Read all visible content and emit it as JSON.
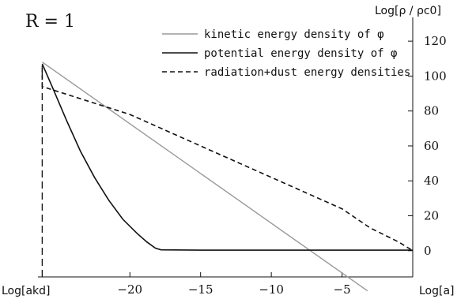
{
  "chart_data": {
    "type": "line",
    "parameter_label": "R = 1",
    "ylabel": "Log[ρ / ρc0]",
    "xlabel": "Log[a]",
    "x_left_label": "Log[akd]",
    "xlim": [
      -26.5,
      0
    ],
    "ylim": [
      -15,
      130
    ],
    "x_ticks": [
      -20,
      -15,
      -10,
      -5
    ],
    "y_ticks": [
      0,
      20,
      40,
      60,
      80,
      100,
      120
    ],
    "grid": false,
    "legend_position": "top-right",
    "series": [
      {
        "name": "kinetic energy density of φ",
        "color": "#999999",
        "style": "solid",
        "x": [
          -26.2,
          -3.2
        ],
        "y": [
          108,
          -23
        ]
      },
      {
        "name": "potential energy density of φ",
        "color": "#111111",
        "style": "solid",
        "x": [
          -26.2,
          -25.5,
          -24.5,
          -23.5,
          -22.5,
          -21.5,
          -20.5,
          -19.5,
          -18.8,
          -18.2,
          -17.8,
          -15,
          -10,
          -5,
          0
        ],
        "y": [
          107,
          94,
          75,
          57,
          42,
          29,
          18,
          10,
          5,
          1.5,
          0.5,
          0.3,
          0.3,
          0.3,
          0.3
        ]
      },
      {
        "name": "radiation+dust energy densities",
        "color": "#111111",
        "style": "dashed",
        "x": [
          -26.2,
          -26.2,
          -20,
          -15,
          -10,
          -5,
          -3,
          -1,
          0
        ],
        "y": [
          105,
          94,
          78,
          60,
          42,
          24,
          13,
          5,
          0
        ]
      }
    ],
    "initial_marker": {
      "style": "dashed",
      "x": -26.2,
      "y": [
        -15,
        106
      ]
    }
  }
}
